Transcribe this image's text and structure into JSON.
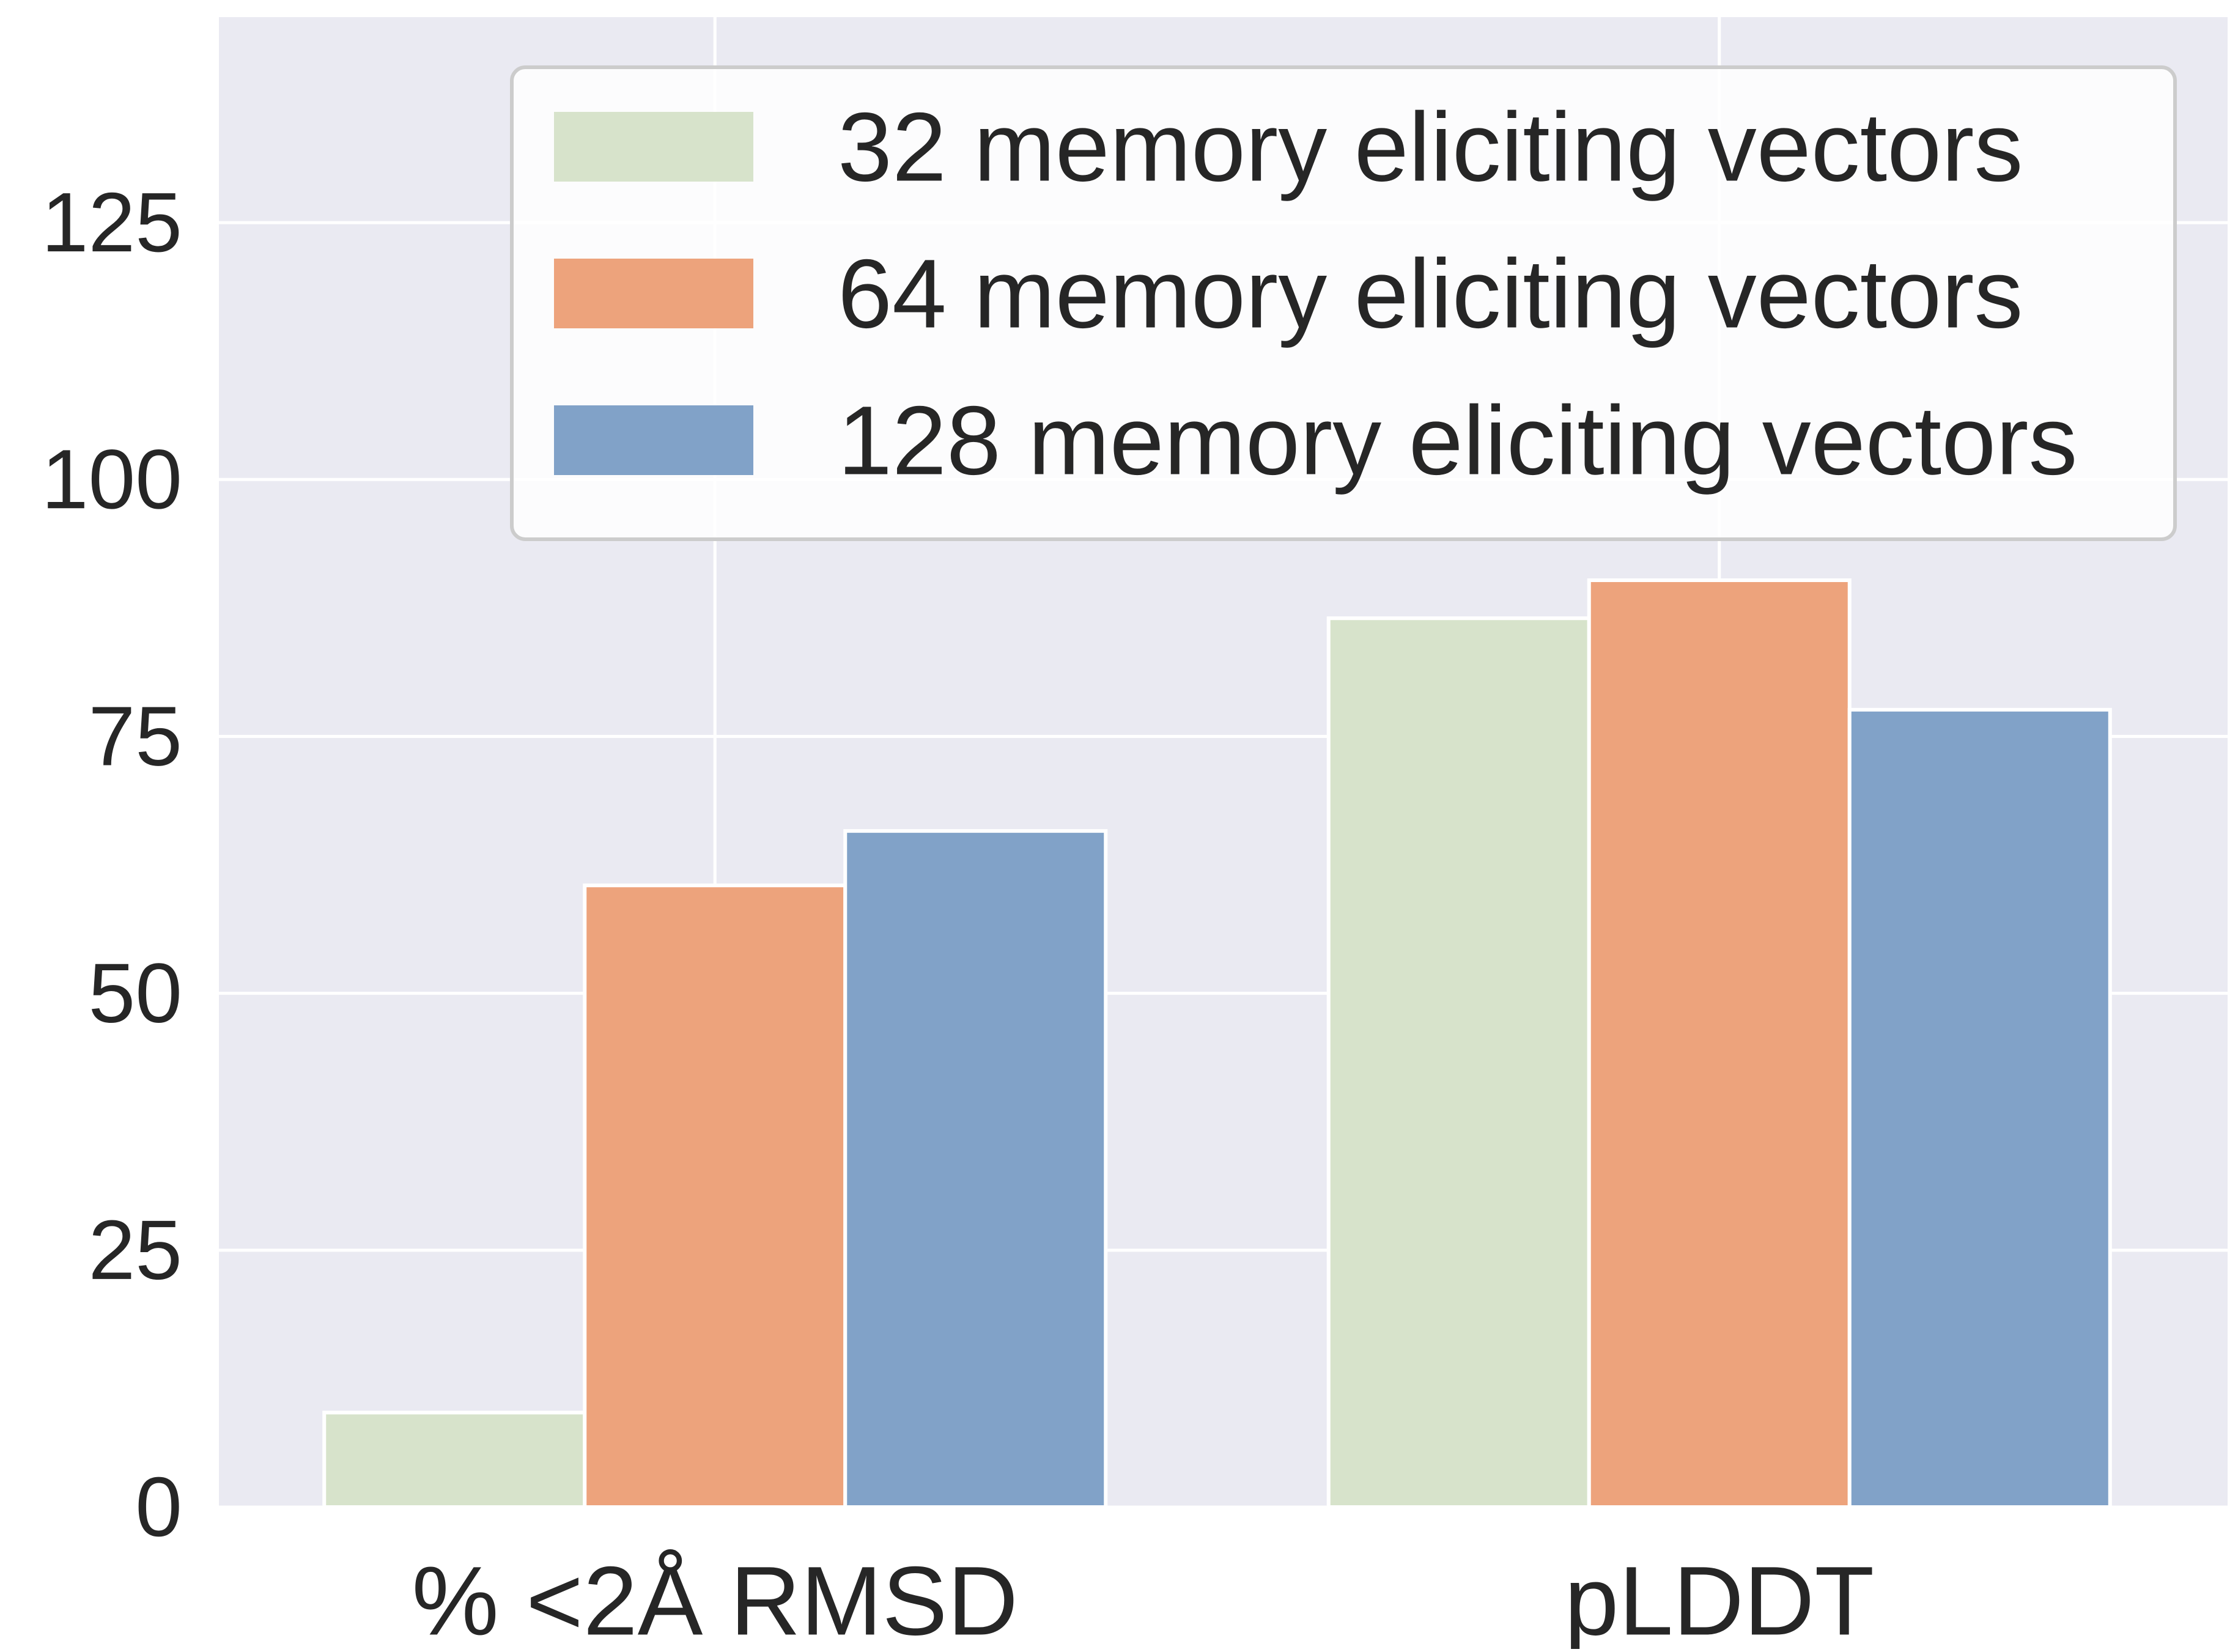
{
  "chart_data": {
    "type": "bar",
    "title": "",
    "xlabel": "",
    "ylabel": "",
    "categories": [
      "% <2Å RMSD",
      "pLDDT"
    ],
    "series": [
      {
        "name": "32 memory eliciting vectors",
        "values": [
          9.2,
          86.5
        ],
        "color": "#d7e3cb"
      },
      {
        "name": "64 memory eliciting vectors",
        "values": [
          60.5,
          90.2
        ],
        "color": "#eda37c"
      },
      {
        "name": "128 memory eliciting vectors",
        "values": [
          65.8,
          77.6
        ],
        "color": "#81a2c8"
      }
    ],
    "ylim": [
      0,
      145
    ],
    "yticks": [
      0,
      25,
      50,
      75,
      100,
      125
    ],
    "grid": true,
    "legend_position": "top-right",
    "colors": {
      "background": "#eaeaf2",
      "grid": "#ffffff",
      "text": "#262626"
    }
  }
}
